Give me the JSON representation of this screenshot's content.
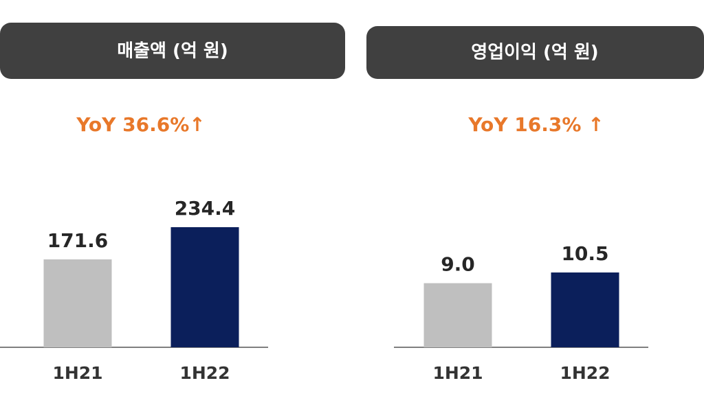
{
  "chart_data": [
    {
      "type": "bar",
      "title": "매출액 (억 원)",
      "annotation": "YoY 36.6%↑",
      "categories": [
        "1H21",
        "1H22"
      ],
      "values": [
        171.6,
        234.4
      ],
      "colors": [
        "#bfbfbf",
        "#0b1f5b"
      ]
    },
    {
      "type": "bar",
      "title": "영업이익 (억 원)",
      "annotation": "YoY 16.3% ↑",
      "categories": [
        "1H21",
        "1H22"
      ],
      "values": [
        9.0,
        10.5
      ],
      "value_labels": [
        "9.0",
        "10.5"
      ],
      "colors": [
        "#bfbfbf",
        "#0b1f5b"
      ]
    }
  ]
}
